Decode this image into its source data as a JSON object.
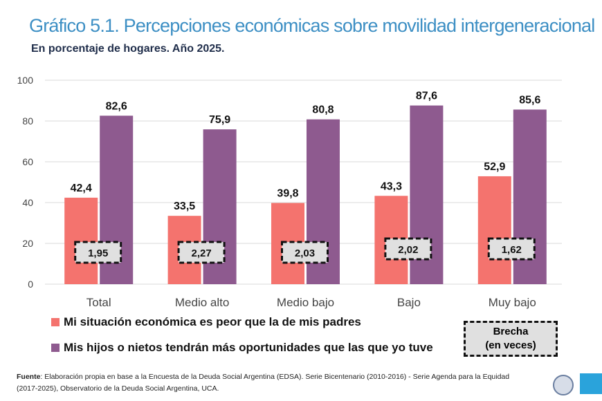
{
  "title": "Gráfico 5.1. Percepciones económicas sobre movilidad intergeneracional",
  "subtitle": "En porcentaje de hogares. Año 2025.",
  "chart_data": {
    "type": "bar",
    "categories": [
      "Total",
      "Medio alto",
      "Medio bajo",
      "Bajo",
      "Muy bajo"
    ],
    "series": [
      {
        "name": "Mi situación económica es peor que la de mis padres",
        "values": [
          42.4,
          33.5,
          39.8,
          43.3,
          52.9
        ],
        "labels": [
          "42,4",
          "33,5",
          "39,8",
          "43,3",
          "52,9"
        ],
        "color": "#f4736e"
      },
      {
        "name": "Mis hijos o nietos tendrán más oportunidades que las que yo tuve",
        "values": [
          82.6,
          75.9,
          80.8,
          87.6,
          85.6
        ],
        "labels": [
          "82,6",
          "75,9",
          "80,8",
          "87,6",
          "85,6"
        ],
        "color": "#8e5a8f"
      }
    ],
    "brecha": {
      "name": "Brecha (en veces)",
      "values": [
        "1,95",
        "2,27",
        "2,03",
        "2,02",
        "1,62"
      ]
    },
    "ylim": [
      0,
      100
    ],
    "yticks": [
      0,
      20,
      40,
      60,
      80,
      100
    ],
    "grid": true,
    "legend": "bottom"
  },
  "legend": {
    "item1": "Mi situación económica es peor que la de mis padres",
    "item2": "Mis hijos o nietos tendrán más oportunidades que las que yo tuve",
    "brecha_line1": "Brecha",
    "brecha_line2": "(en veces)"
  },
  "source": {
    "label": "Fuente",
    "text": ": Elaboración propia en base a la Encuesta de la Deuda Social Argentina (EDSA). Serie Bicentenario (2010-2016) - Serie Agenda para la Equidad (2017-2025), Observatorio de la Deuda Social Argentina, UCA."
  },
  "logos": {
    "odsa": "ODSA"
  }
}
